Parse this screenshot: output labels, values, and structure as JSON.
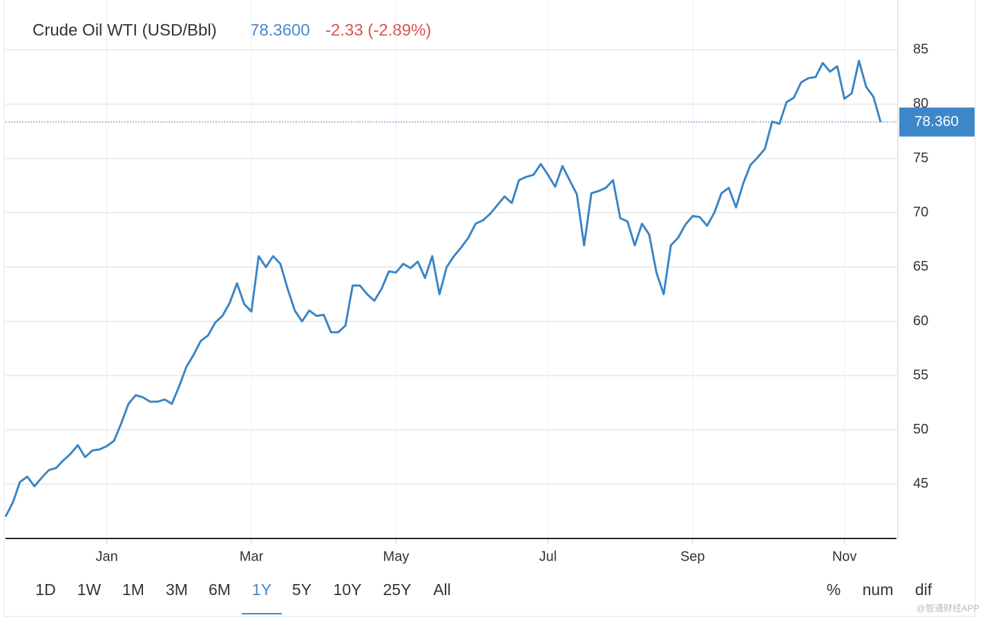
{
  "chart_data": {
    "type": "line",
    "title": "Crude Oil WTI (USD/Bbl)",
    "price": "78.3600",
    "change": "-2.33 (-2.89%)",
    "marker_label": "78.360",
    "categories": [
      null,
      null,
      null,
      null,
      null,
      null,
      null,
      null,
      null,
      null,
      null,
      null,
      null,
      null,
      "Jan",
      null,
      null,
      null,
      null,
      null,
      null,
      null,
      null,
      null,
      null,
      null,
      null,
      null,
      null,
      null,
      null,
      null,
      null,
      null,
      "Mar",
      null,
      null,
      null,
      null,
      null,
      null,
      null,
      null,
      null,
      null,
      null,
      null,
      null,
      null,
      null,
      null,
      null,
      null,
      null,
      "May",
      null,
      null,
      null,
      null,
      null,
      null,
      null,
      null,
      null,
      null,
      null,
      null,
      null,
      null,
      null,
      null,
      null,
      null,
      null,
      null,
      "Jul",
      null,
      null,
      null,
      null,
      null,
      null,
      null,
      null,
      null,
      null,
      null,
      null,
      null,
      null,
      null,
      null,
      null,
      null,
      null,
      "Sep",
      null,
      null,
      null,
      null,
      null,
      null,
      null,
      null,
      null,
      null,
      null,
      null,
      null,
      null,
      null,
      null,
      null,
      null,
      null,
      null,
      "Nov",
      null,
      null,
      null,
      null,
      null
    ],
    "series": [
      {
        "name": "Crude Oil WTI",
        "color": "#3a84c4",
        "values": [
          42.0,
          43.3,
          45.2,
          45.7,
          44.8,
          45.6,
          46.3,
          46.5,
          47.2,
          47.8,
          48.6,
          47.5,
          48.1,
          48.2,
          48.5,
          49.0,
          50.6,
          52.4,
          53.2,
          53.0,
          52.6,
          52.6,
          52.8,
          52.4,
          54.0,
          55.8,
          56.9,
          58.2,
          58.7,
          59.9,
          60.5,
          61.7,
          63.5,
          61.6,
          60.9,
          66.0,
          65.0,
          66.0,
          65.3,
          63.0,
          61.0,
          60.0,
          61.0,
          60.5,
          60.6,
          59.0,
          59.0,
          59.6,
          63.3,
          63.3,
          62.5,
          61.9,
          63.0,
          64.6,
          64.5,
          65.3,
          64.9,
          65.5,
          64.0,
          66.0,
          62.5,
          65.0,
          66.0,
          66.8,
          67.7,
          69.0,
          69.3,
          69.9,
          70.7,
          71.5,
          70.9,
          73.0,
          73.3,
          73.5,
          74.5,
          73.5,
          72.4,
          74.3,
          73.0,
          71.7,
          67.0,
          71.8,
          72.0,
          72.3,
          73.0,
          69.5,
          69.2,
          67.0,
          69.0,
          68.0,
          64.5,
          62.5,
          67.0,
          67.7,
          68.9,
          69.7,
          69.6,
          68.8,
          70.0,
          71.8,
          72.3,
          70.5,
          72.7,
          74.4,
          75.1,
          75.9,
          78.4,
          78.2,
          80.2,
          80.6,
          82.0,
          82.4,
          82.5,
          83.8,
          83.0,
          83.5,
          80.5,
          81.0,
          84.0,
          81.6,
          80.7,
          78.36
        ]
      }
    ],
    "ylim": [
      40,
      89.6
    ],
    "yticks": [
      45,
      50,
      55,
      60,
      65,
      70,
      75,
      80,
      85
    ],
    "grid": true,
    "ranges": [
      "1D",
      "1W",
      "1M",
      "3M",
      "6M",
      "1Y",
      "5Y",
      "10Y",
      "25Y",
      "All"
    ],
    "selected_range": 5,
    "modes": [
      "%",
      "num",
      "dif"
    ],
    "watermark": "@智通财经APP"
  }
}
